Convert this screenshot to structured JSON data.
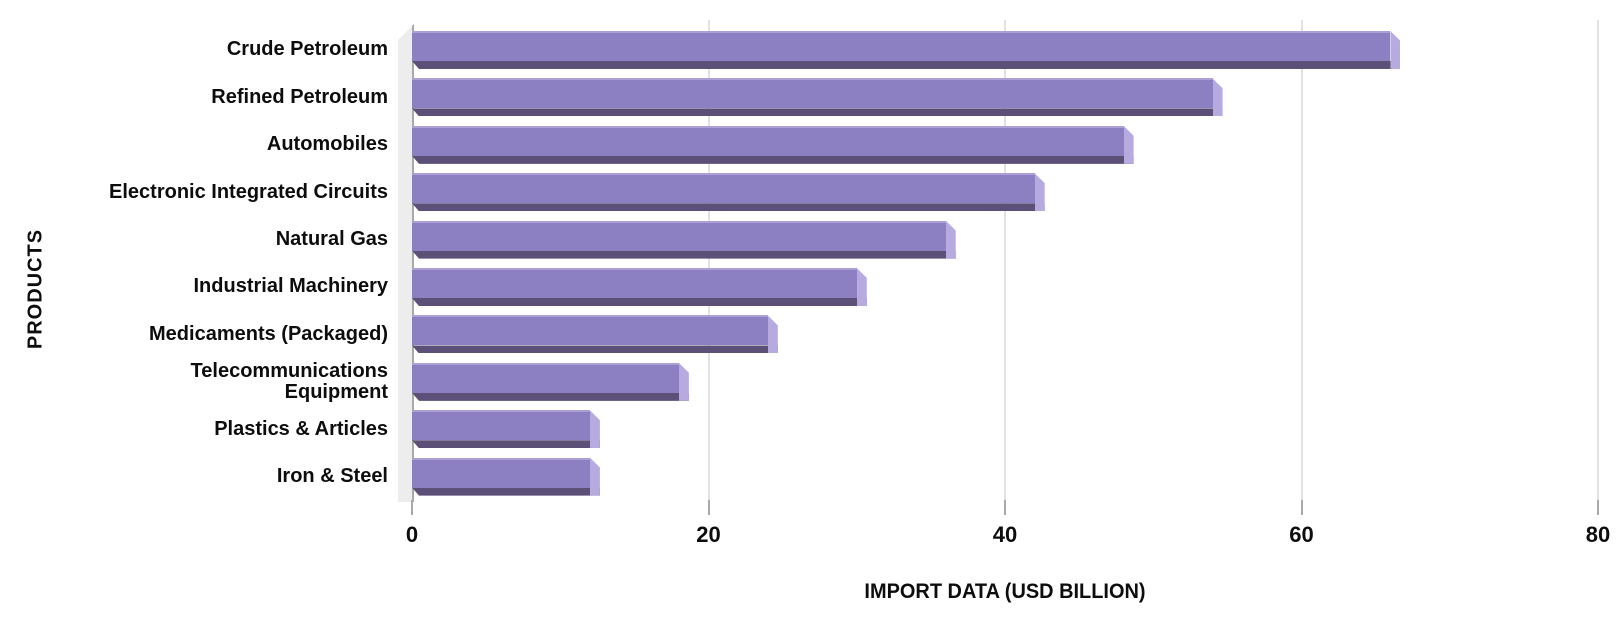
{
  "chart_data": {
    "type": "bar",
    "orientation": "horizontal",
    "title": "",
    "categories": [
      "Crude Petroleum",
      "Refined Petroleum",
      "Automobiles",
      "Electronic Integrated Circuits",
      "Natural Gas",
      "Industrial Machinery",
      "Medicaments (Packaged)",
      "Telecommunications Equipment",
      "Plastics & Articles",
      "Iron & Steel"
    ],
    "values": [
      66,
      54,
      48,
      42,
      36,
      30,
      24,
      18,
      12,
      12
    ],
    "xlabel": "IMPORT DATA (USD BILLION)",
    "ylabel": "PRODUCTS",
    "xlim": [
      0,
      80
    ],
    "xticks": [
      0,
      20,
      40,
      60,
      80
    ],
    "grid": true,
    "legend": false,
    "style": "3d-bevel-bars"
  },
  "colors": {
    "bar_face": "#8c7fc2",
    "bar_highlight": "#ab9fd6",
    "bar_bevel": "#b6aade",
    "bar_shadow": "#5c5078",
    "wall": "#ededed",
    "wall_edge": "#a9a9a9",
    "gridline": "#e2e2e2",
    "text": "#0d0d0d"
  }
}
